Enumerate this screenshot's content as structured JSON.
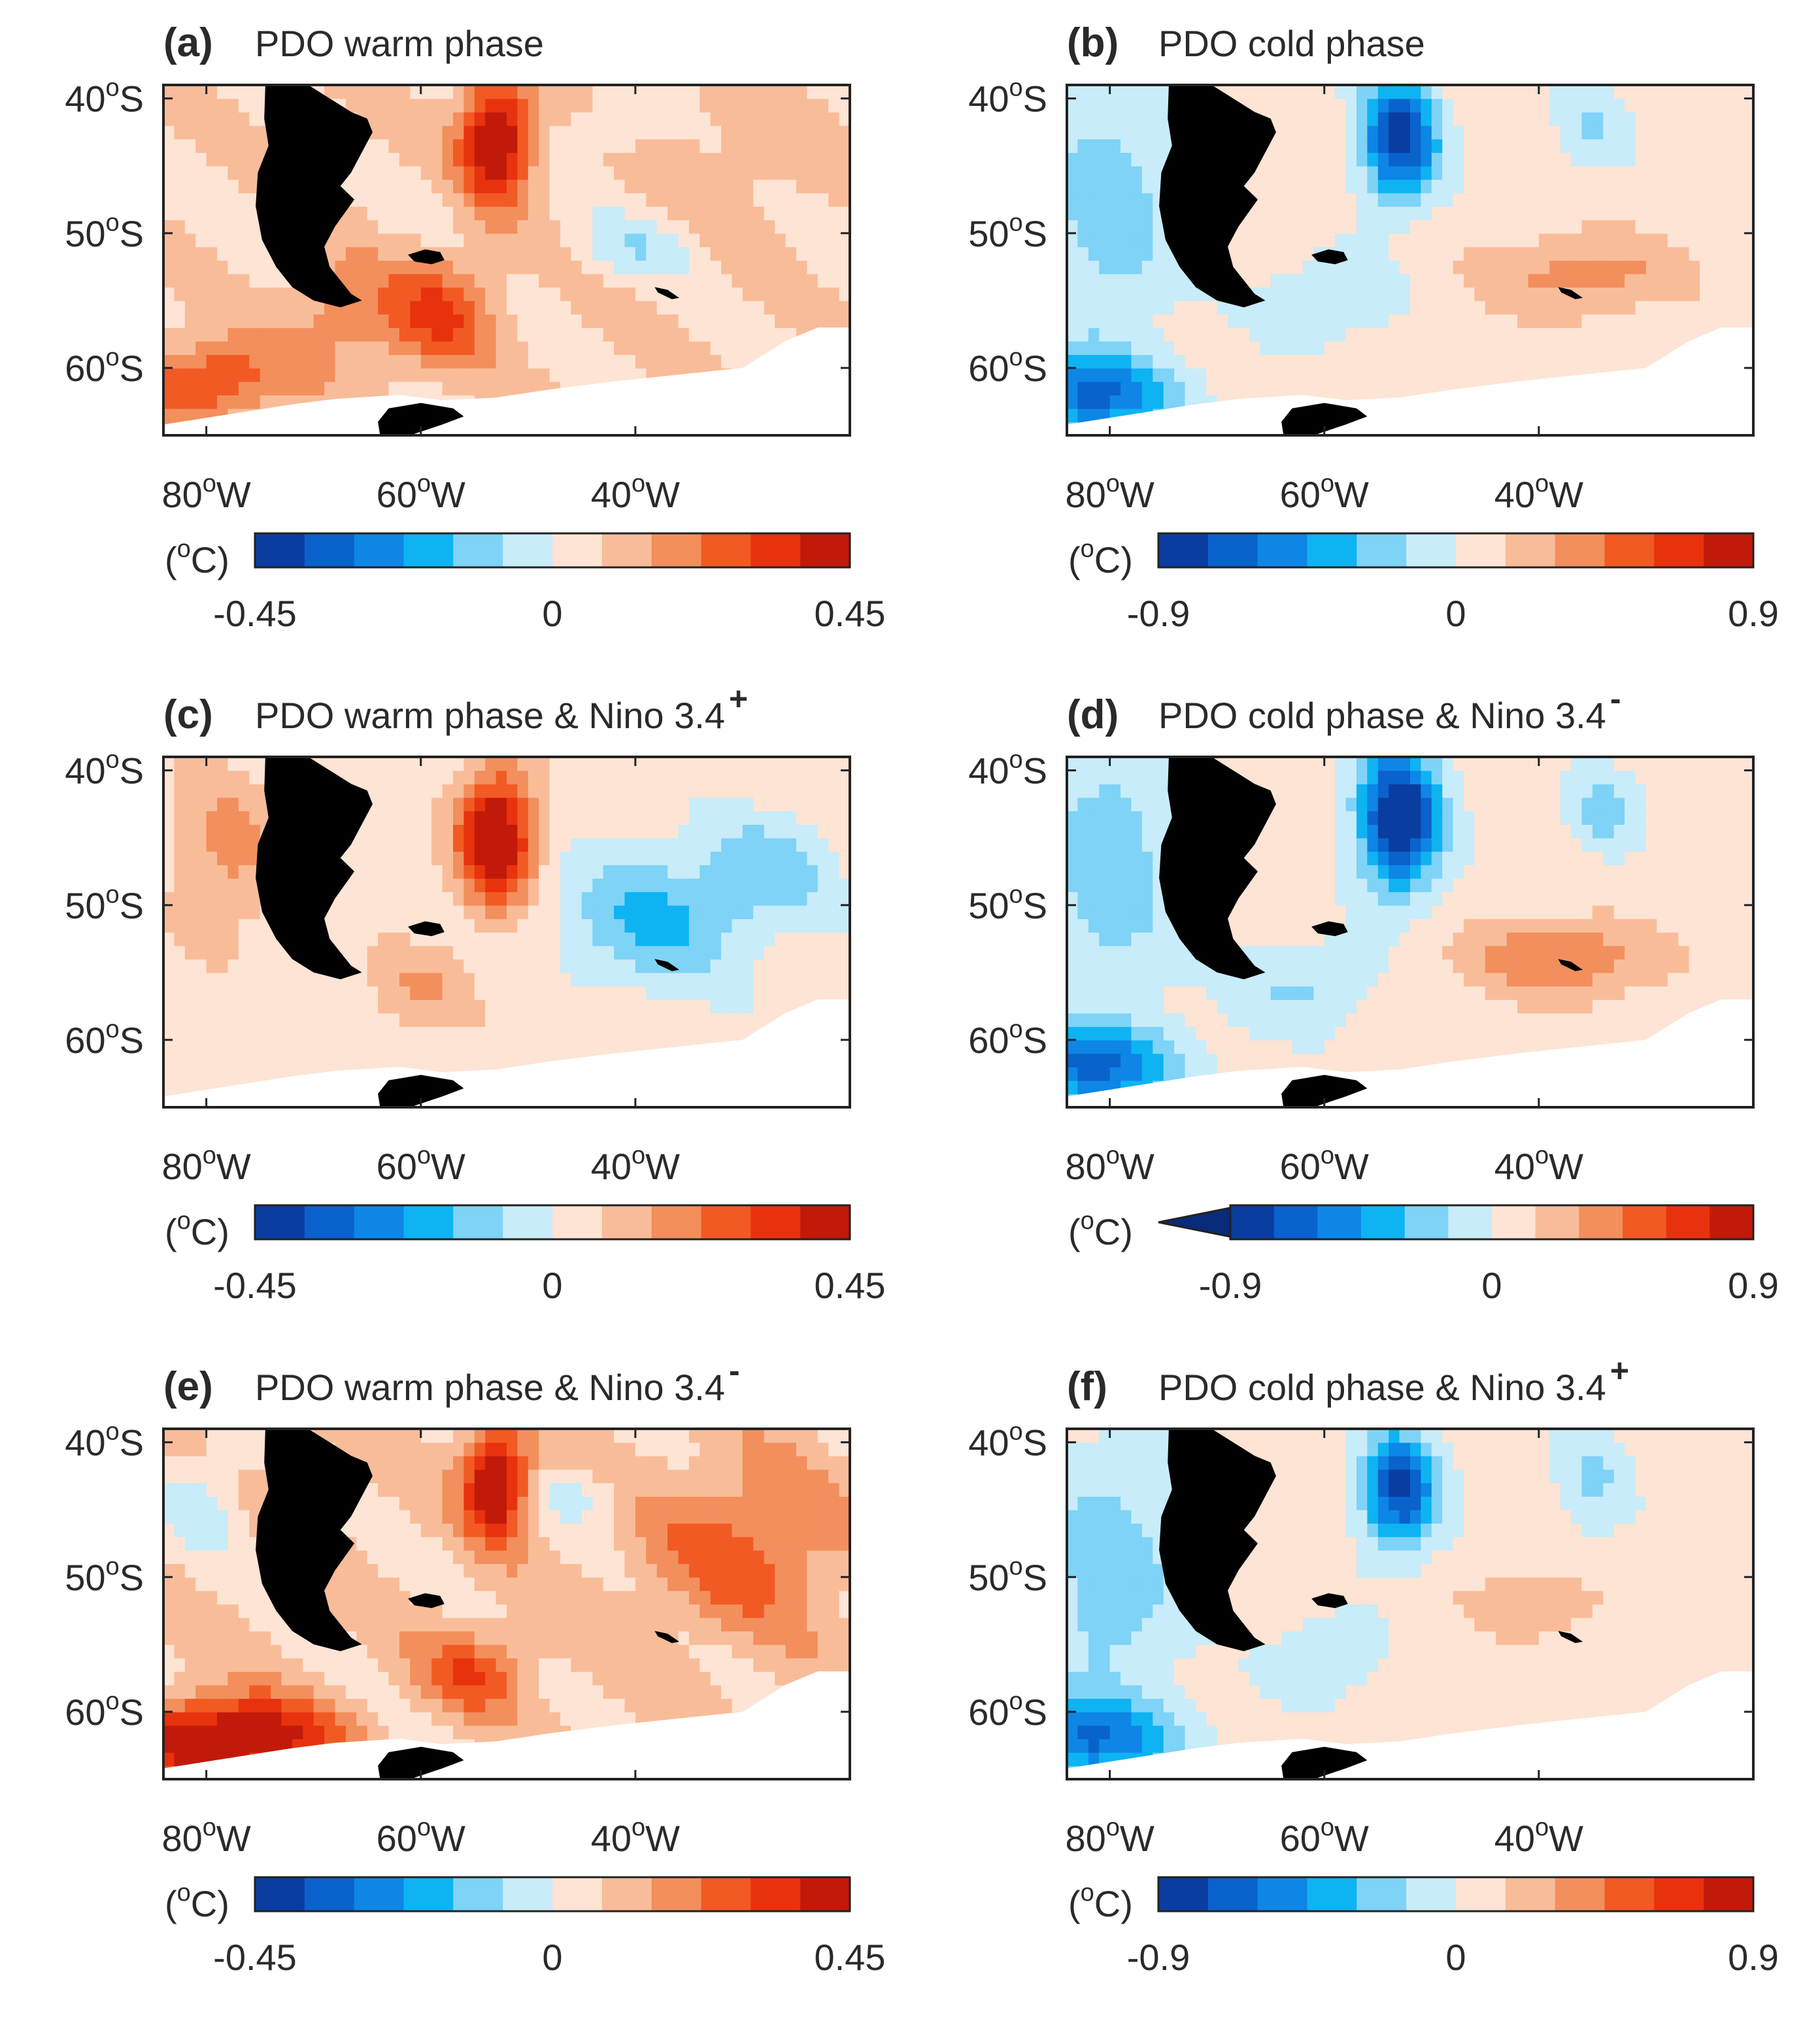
{
  "figure": {
    "description_units": "°C",
    "palette": {
      "blue": [
        "#0a3da0",
        "#0a62cc",
        "#0d86e6",
        "#0eb3f2",
        "#7fd3f6",
        "#c8ecf9"
      ],
      "red": [
        "#fde4d4",
        "#f9bc99",
        "#f28f5d",
        "#f25a23",
        "#e8320e",
        "#c11a0a"
      ],
      "land": "#000000",
      "ice_mask": "#ffffff"
    }
  },
  "chart_data": [
    {
      "type": "heatmap",
      "panel": "(a)",
      "title": "PDO warm phase",
      "superscript": "",
      "xlabel_ticks": [
        "80°W",
        "60°W",
        "40°W"
      ],
      "xtick_values": [
        -80,
        -60,
        -40
      ],
      "ylabel_ticks": [
        "40°S",
        "50°S",
        "60°S"
      ],
      "ytick_values": [
        -40,
        -50,
        -60
      ],
      "xlim": [
        -84,
        -20
      ],
      "ylim": [
        -65,
        -39
      ],
      "colorbar": {
        "unit": "(°C)",
        "min": -0.45,
        "max": 0.45,
        "tick_labels": [
          "-0.45",
          "0",
          "0.45"
        ],
        "levels": 12,
        "extend_low": false
      },
      "features": [
        {
          "lon": -53,
          "lat": -43,
          "amp": 1.0,
          "rx": 3.2,
          "ry": 4.5
        },
        {
          "lon": -58,
          "lat": -56,
          "amp": 0.5,
          "rx": 5,
          "ry": 4
        },
        {
          "lon": -80,
          "lat": -61,
          "amp": 0.55,
          "rx": 7,
          "ry": 3
        },
        {
          "lon": -67,
          "lat": -56,
          "amp": 0.3,
          "rx": 6,
          "ry": 4
        },
        {
          "lon": -40,
          "lat": -51,
          "amp": -0.25,
          "rx": 6,
          "ry": 2.5
        },
        {
          "lon": -42,
          "lat": -42,
          "amp": -0.2,
          "rx": 4,
          "ry": 2
        },
        {
          "lon": -30,
          "lat": -44,
          "amp": 0.12,
          "rx": 7,
          "ry": 6
        }
      ],
      "base": 0.22
    },
    {
      "type": "heatmap",
      "panel": "(b)",
      "title": "PDO cold phase",
      "superscript": "",
      "xlabel_ticks": [
        "80°W",
        "60°W",
        "40°W"
      ],
      "xtick_values": [
        -80,
        -60,
        -40
      ],
      "ylabel_ticks": [
        "40°S",
        "50°S",
        "60°S"
      ],
      "ytick_values": [
        -40,
        -50,
        -60
      ],
      "xlim": [
        -84,
        -20
      ],
      "ylim": [
        -65,
        -39
      ],
      "colorbar": {
        "unit": "(°C)",
        "min": -0.9,
        "max": 0.9,
        "tick_labels": [
          "-0.9",
          "0",
          "0.9"
        ],
        "levels": 12,
        "extend_low": false
      },
      "features": [
        {
          "lon": -53,
          "lat": -43,
          "amp": -1.0,
          "rx": 3.5,
          "ry": 4.5
        },
        {
          "lon": -82,
          "lat": -62,
          "amp": -0.75,
          "rx": 8,
          "ry": 3
        },
        {
          "lon": -36,
          "lat": -53,
          "amp": 0.35,
          "rx": 9,
          "ry": 3
        },
        {
          "lon": -80,
          "lat": -48,
          "amp": -0.35,
          "rx": 6,
          "ry": 10
        },
        {
          "lon": -35,
          "lat": -42,
          "amp": -0.25,
          "rx": 3,
          "ry": 3
        },
        {
          "lon": -60,
          "lat": -55,
          "amp": -0.25,
          "rx": 6,
          "ry": 3
        }
      ],
      "base": 0.1
    },
    {
      "type": "heatmap",
      "panel": "(c)",
      "title": "PDO warm phase & Nino 3.4",
      "superscript": "+",
      "xlabel_ticks": [
        "80°W",
        "60°W",
        "40°W"
      ],
      "xtick_values": [
        -80,
        -60,
        -40
      ],
      "ylabel_ticks": [
        "40°S",
        "50°S",
        "60°S"
      ],
      "ytick_values": [
        -40,
        -50,
        -60
      ],
      "xlim": [
        -84,
        -20
      ],
      "ylim": [
        -65,
        -39
      ],
      "colorbar": {
        "unit": "(°C)",
        "min": -0.45,
        "max": 0.45,
        "tick_labels": [
          "-0.45",
          "0",
          "0.45"
        ],
        "levels": 12,
        "extend_low": false
      },
      "features": [
        {
          "lon": -53,
          "lat": -45,
          "amp": 1.05,
          "rx": 3.5,
          "ry": 5
        },
        {
          "lon": -78,
          "lat": -46,
          "amp": 0.3,
          "rx": 5,
          "ry": 6
        },
        {
          "lon": -38,
          "lat": -51,
          "amp": -0.45,
          "rx": 9,
          "ry": 5
        },
        {
          "lon": -27,
          "lat": -47,
          "amp": -0.3,
          "rx": 6,
          "ry": 4
        },
        {
          "lon": -60,
          "lat": -56,
          "amp": 0.25,
          "rx": 5,
          "ry": 3
        }
      ],
      "base": 0.12
    },
    {
      "type": "heatmap",
      "panel": "(d)",
      "title": "PDO cold phase & Nino 3.4",
      "superscript": "-",
      "xlabel_ticks": [
        "80°W",
        "60°W",
        "40°W"
      ],
      "xtick_values": [
        -80,
        -60,
        -40
      ],
      "ylabel_ticks": [
        "40°S",
        "50°S",
        "60°S"
      ],
      "ytick_values": [
        -40,
        -50,
        -60
      ],
      "xlim": [
        -84,
        -20
      ],
      "ylim": [
        -65,
        -39
      ],
      "colorbar": {
        "unit": "(°C)",
        "min": -0.9,
        "max": 0.9,
        "tick_labels": [
          "-0.9",
          "0",
          "0.9"
        ],
        "levels": 12,
        "extend_low": true
      },
      "features": [
        {
          "lon": -53,
          "lat": -43.5,
          "amp": -1.2,
          "rx": 3.6,
          "ry": 5
        },
        {
          "lon": -82,
          "lat": -62,
          "amp": -0.75,
          "rx": 8,
          "ry": 3
        },
        {
          "lon": -38,
          "lat": -54,
          "amp": 0.45,
          "rx": 9,
          "ry": 3
        },
        {
          "lon": -80,
          "lat": -47,
          "amp": -0.35,
          "rx": 6,
          "ry": 10
        },
        {
          "lon": -34,
          "lat": -43,
          "amp": -0.3,
          "rx": 3,
          "ry": 3
        },
        {
          "lon": -62,
          "lat": -56,
          "amp": -0.25,
          "rx": 6,
          "ry": 3
        }
      ],
      "base": 0.08
    },
    {
      "type": "heatmap",
      "panel": "(e)",
      "title": "PDO warm phase & Nino 3.4",
      "superscript": "-",
      "xlabel_ticks": [
        "80°W",
        "60°W",
        "40°W"
      ],
      "xtick_values": [
        -80,
        -60,
        -40
      ],
      "ylabel_ticks": [
        "40°S",
        "50°S",
        "60°S"
      ],
      "ytick_values": [
        -40,
        -50,
        -60
      ],
      "xlim": [
        -84,
        -20
      ],
      "ylim": [
        -65,
        -39
      ],
      "colorbar": {
        "unit": "(°C)",
        "min": -0.45,
        "max": 0.45,
        "tick_labels": [
          "-0.45",
          "0",
          "0.45"
        ],
        "levels": 12,
        "extend_low": false
      },
      "features": [
        {
          "lon": -53,
          "lat": -43,
          "amp": 0.95,
          "rx": 3,
          "ry": 4
        },
        {
          "lon": -78,
          "lat": -62,
          "amp": 1.0,
          "rx": 9,
          "ry": 3
        },
        {
          "lon": -55,
          "lat": -57,
          "amp": 0.45,
          "rx": 5,
          "ry": 3
        },
        {
          "lon": -30,
          "lat": -48,
          "amp": 0.4,
          "rx": 9,
          "ry": 6
        },
        {
          "lon": -80,
          "lat": -44,
          "amp": -0.25,
          "rx": 4,
          "ry": 4
        },
        {
          "lon": -45,
          "lat": -44,
          "amp": -0.25,
          "rx": 4,
          "ry": 2
        }
      ],
      "base": 0.26
    },
    {
      "type": "heatmap",
      "panel": "(f)",
      "title": "PDO cold phase & Nino 3.4",
      "superscript": "+",
      "xlabel_ticks": [
        "80°W",
        "60°W",
        "40°W"
      ],
      "xtick_values": [
        -80,
        -60,
        -40
      ],
      "ylabel_ticks": [
        "40°S",
        "50°S",
        "60°S"
      ],
      "ytick_values": [
        -40,
        -50,
        -60
      ],
      "xlim": [
        -84,
        -20
      ],
      "ylim": [
        -65,
        -39
      ],
      "colorbar": {
        "unit": "(°C)",
        "min": -0.9,
        "max": 0.9,
        "tick_labels": [
          "-0.9",
          "0",
          "0.9"
        ],
        "levels": 12,
        "extend_low": false
      },
      "features": [
        {
          "lon": -53,
          "lat": -43.5,
          "amp": -0.95,
          "rx": 3.3,
          "ry": 4.2
        },
        {
          "lon": -82,
          "lat": -62,
          "amp": -0.7,
          "rx": 8,
          "ry": 3
        },
        {
          "lon": -80,
          "lat": -50,
          "amp": -0.35,
          "rx": 6,
          "ry": 9
        },
        {
          "lon": -35,
          "lat": -43,
          "amp": -0.25,
          "rx": 3,
          "ry": 4
        },
        {
          "lon": -40,
          "lat": -52,
          "amp": 0.2,
          "rx": 8,
          "ry": 3
        },
        {
          "lon": -60,
          "lat": -56,
          "amp": -0.2,
          "rx": 5,
          "ry": 3
        }
      ],
      "base": 0.08
    }
  ]
}
